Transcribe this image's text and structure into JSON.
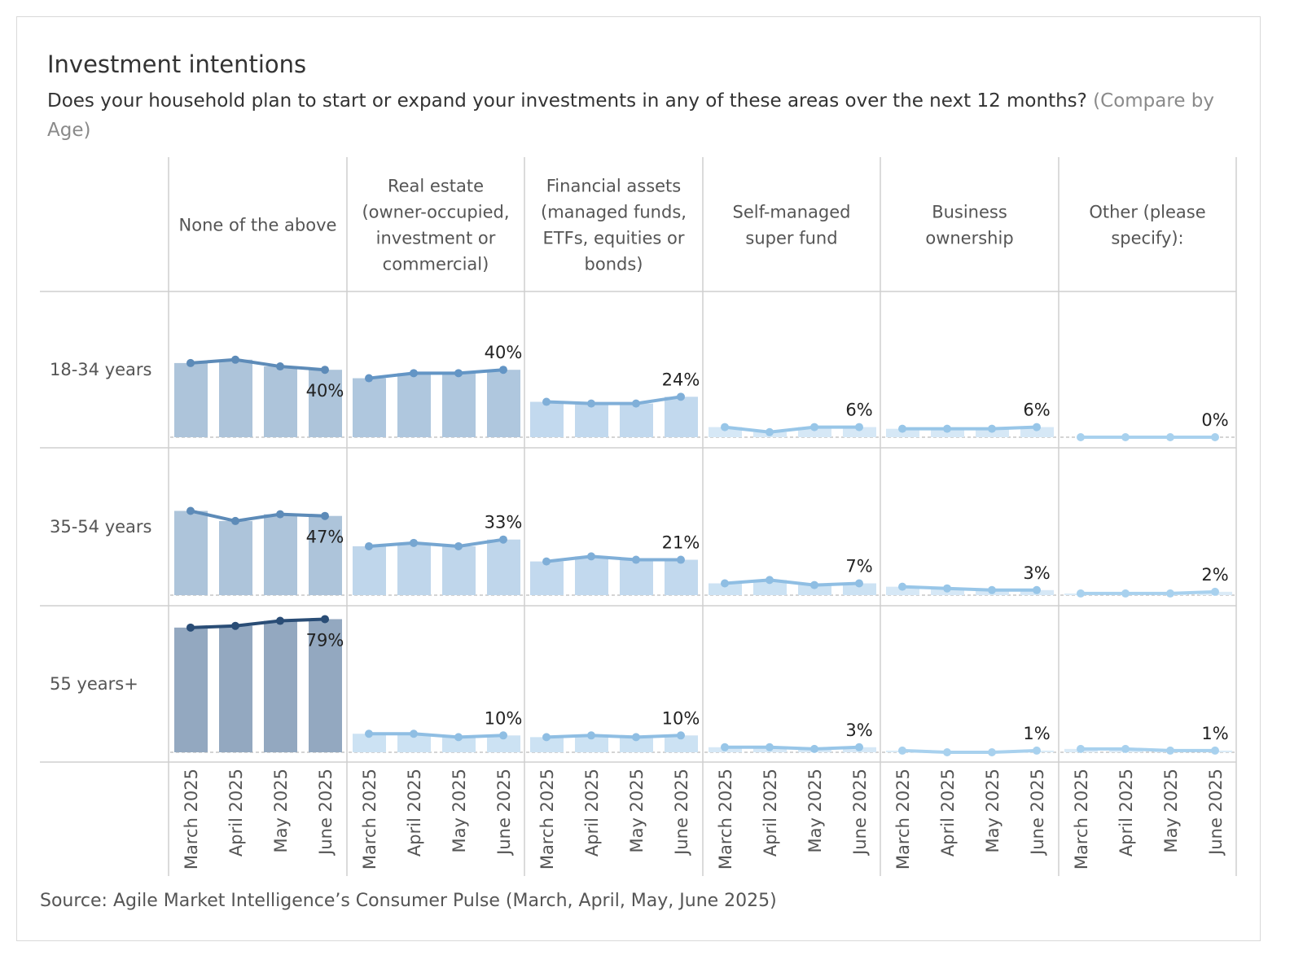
{
  "header": {
    "title": "Investment intentions",
    "subtitle_main": "Does your household plan to start or expand your investments in any of these areas over the next 12 months?",
    "subtitle_compare": "(Compare by Age)"
  },
  "footer": {
    "source": "Source: Agile Market Intelligence’s Consumer Pulse (March, April, May, June 2025)"
  },
  "chart_data": {
    "type": "bar",
    "x": [
      "March 2025",
      "April 2025",
      "May 2025",
      "June 2025"
    ],
    "columns": [
      "None of the above",
      "Real estate (owner-occupied, investment or commercial)",
      "Financial assets (managed funds, ETFs, equities or bonds)",
      "Self-managed super fund",
      "Business ownership",
      "Other (please specify):"
    ],
    "column_header_lines": [
      [
        "None of the above"
      ],
      [
        "Real estate",
        "(owner-occupied,",
        "investment or",
        "commercial)"
      ],
      [
        "Financial assets",
        "(managed funds,",
        "ETFs, equities or",
        "bonds)"
      ],
      [
        "Self-managed",
        "super fund"
      ],
      [
        "Business",
        "ownership"
      ],
      [
        "Other (please",
        "specify):"
      ]
    ],
    "rows": [
      "18-34 years",
      "35-54 years",
      "55 years+"
    ],
    "values": [
      [
        [
          44,
          46,
          42,
          40
        ],
        [
          35,
          38,
          38,
          40
        ],
        [
          21,
          20,
          20,
          24
        ],
        [
          6,
          3,
          6,
          6
        ],
        [
          5,
          5,
          5,
          6
        ],
        [
          0,
          0,
          0,
          0
        ]
      ],
      [
        [
          50,
          44,
          48,
          47
        ],
        [
          29,
          31,
          29,
          33
        ],
        [
          20,
          23,
          21,
          21
        ],
        [
          7,
          9,
          6,
          7
        ],
        [
          5,
          4,
          3,
          3
        ],
        [
          1,
          1,
          1,
          2
        ]
      ],
      [
        [
          74,
          75,
          78,
          79
        ],
        [
          11,
          11,
          9,
          10
        ],
        [
          9,
          10,
          9,
          10
        ],
        [
          3,
          3,
          2,
          3
        ],
        [
          1,
          0,
          0,
          1
        ],
        [
          2,
          2,
          1,
          1
        ]
      ]
    ],
    "value_labels": [
      [
        "40%",
        "40%",
        "24%",
        "6%",
        "6%",
        "0%"
      ],
      [
        "47%",
        "33%",
        "21%",
        "7%",
        "3%",
        "2%"
      ],
      [
        "79%",
        "10%",
        "10%",
        "3%",
        "1%",
        "1%"
      ]
    ],
    "colors": {
      "bar": [
        [
          "#adc4da",
          "#afc7de",
          "#c2d9ee",
          "#d6e8f6",
          "#d6e8f6",
          "#dbebf7"
        ],
        [
          "#adc4da",
          "#bfd6eb",
          "#c2d9ee",
          "#cce2f3",
          "#d6e8f6",
          "#dbebf7"
        ],
        [
          "#93a8c0",
          "#cce2f3",
          "#cce2f3",
          "#d6e8f6",
          "#dbebf7",
          "#dbebf7"
        ]
      ],
      "line": [
        [
          "#5d8bb8",
          "#6395c5",
          "#80afd8",
          "#98c6e8",
          "#98c6e8",
          "#a8d1ee"
        ],
        [
          "#5d8bb8",
          "#76a6d1",
          "#80afd8",
          "#8fbee3",
          "#98c6e8",
          "#a8d1ee"
        ],
        [
          "#2a4d76",
          "#8fbee3",
          "#8fbee3",
          "#98c6e8",
          "#a8d1ee",
          "#a8d1ee"
        ]
      ]
    },
    "ylim": [
      0,
      79
    ]
  }
}
